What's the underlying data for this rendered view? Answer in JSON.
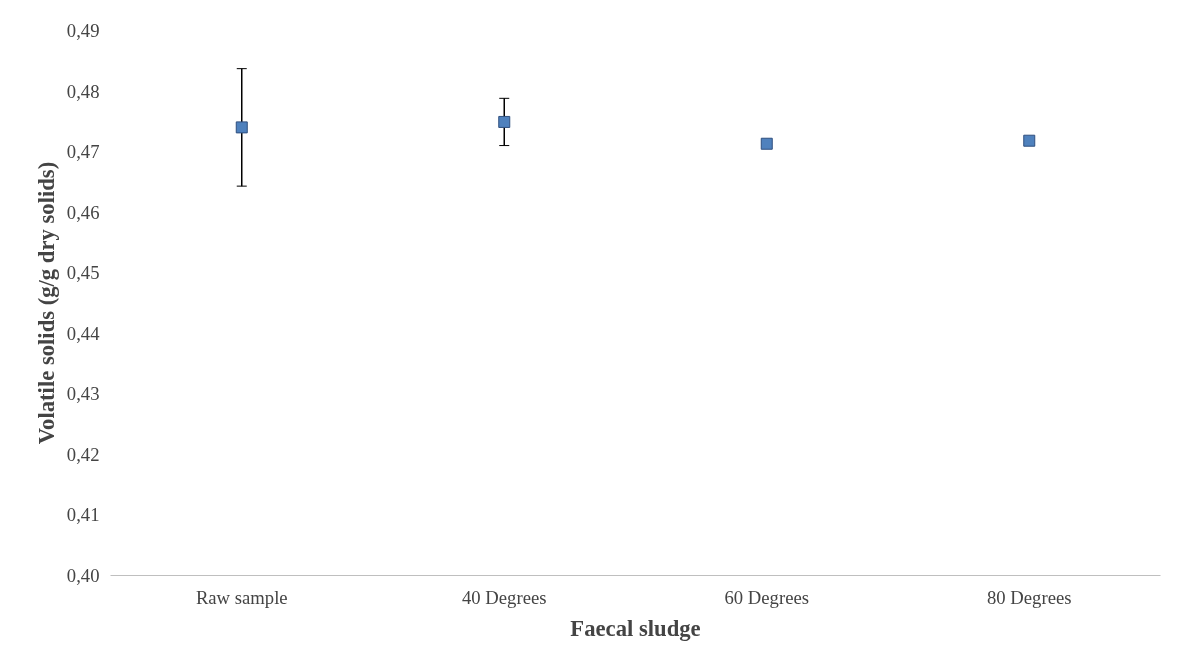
{
  "chart_data": {
    "type": "scatter",
    "xlabel": "Faecal sludge",
    "ylabel": "Volatile solids (g/g dry solids)",
    "categories": [
      "Raw sample",
      "40 Degrees",
      "60 Degrees",
      "80 Degrees"
    ],
    "series": [
      {
        "color": "#4f81bd",
        "values": [
          0.474,
          0.4749,
          0.4713,
          0.4718
        ],
        "errors": [
          0.0097,
          0.0039,
          null,
          null
        ]
      }
    ],
    "ylim": [
      0.4,
      0.49
    ],
    "yticks": [
      {
        "value": 0.4,
        "label": "0,40"
      },
      {
        "value": 0.41,
        "label": "0,41"
      },
      {
        "value": 0.42,
        "label": "0,42"
      },
      {
        "value": 0.43,
        "label": "0,43"
      },
      {
        "value": 0.44,
        "label": "0,44"
      },
      {
        "value": 0.45,
        "label": "0,45"
      },
      {
        "value": 0.46,
        "label": "0,46"
      },
      {
        "value": 0.47,
        "label": "0,47"
      },
      {
        "value": 0.48,
        "label": "0,48"
      },
      {
        "value": 0.49,
        "label": "0,49"
      }
    ],
    "grid": false,
    "marker": "square"
  }
}
